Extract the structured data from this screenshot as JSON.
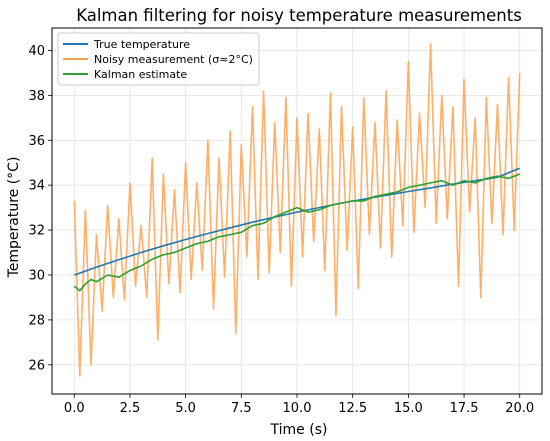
{
  "chart_data": {
    "type": "line",
    "title": "Kalman filtering for noisy temperature measurements",
    "xlabel": "Time (s)",
    "ylabel": "Temperature (°C)",
    "xlim": [
      -1.0,
      21.0
    ],
    "ylim": [
      24.7,
      41.0
    ],
    "xticks": [
      0.0,
      2.5,
      5.0,
      7.5,
      10.0,
      12.5,
      15.0,
      17.5,
      20.0
    ],
    "xtick_labels": [
      "0.0",
      "2.5",
      "5.0",
      "7.5",
      "10.0",
      "12.5",
      "15.0",
      "17.5",
      "20.0"
    ],
    "yticks": [
      26,
      28,
      30,
      32,
      34,
      36,
      38,
      40
    ],
    "ytick_labels": [
      "26",
      "28",
      "30",
      "32",
      "34",
      "36",
      "38",
      "40"
    ],
    "grid": true,
    "legend_position": "top-left",
    "series": [
      {
        "name": "True temperature",
        "color": "#1f77b4",
        "x": [
          0,
          1,
          2,
          3,
          4,
          5,
          6,
          7,
          8,
          9,
          10,
          11,
          12,
          13,
          14,
          15,
          16,
          17,
          18,
          19,
          20
        ],
        "y": [
          30.0,
          30.35,
          30.68,
          31.0,
          31.3,
          31.58,
          31.85,
          32.1,
          32.35,
          32.58,
          32.8,
          33.0,
          33.2,
          33.38,
          33.55,
          33.72,
          33.88,
          34.05,
          34.2,
          34.35,
          34.75
        ]
      },
      {
        "name": "Noisy measurement (σ≈2°C)",
        "color": "#ffa14d",
        "x": [
          0,
          0.25,
          0.5,
          0.75,
          1.0,
          1.25,
          1.5,
          1.75,
          2.0,
          2.25,
          2.5,
          2.75,
          3.0,
          3.25,
          3.5,
          3.75,
          4.0,
          4.25,
          4.5,
          4.75,
          5.0,
          5.25,
          5.5,
          5.75,
          6.0,
          6.25,
          6.5,
          6.75,
          7.0,
          7.25,
          7.5,
          7.75,
          8.0,
          8.25,
          8.5,
          8.75,
          9.0,
          9.25,
          9.5,
          9.75,
          10.0,
          10.25,
          10.5,
          10.75,
          11.0,
          11.25,
          11.5,
          11.75,
          12.0,
          12.25,
          12.5,
          12.75,
          13.0,
          13.25,
          13.5,
          13.75,
          14.0,
          14.25,
          14.5,
          14.75,
          15.0,
          15.25,
          15.5,
          15.75,
          16.0,
          16.25,
          16.5,
          16.75,
          17.0,
          17.25,
          17.5,
          17.75,
          18.0,
          18.25,
          18.5,
          18.75,
          19.0,
          19.25,
          19.5,
          19.75,
          20.0
        ],
        "y": [
          33.3,
          25.5,
          32.9,
          26.0,
          31.8,
          28.4,
          33.1,
          29.0,
          32.5,
          28.9,
          34.1,
          29.5,
          32.2,
          29.0,
          35.2,
          27.1,
          34.5,
          29.6,
          33.8,
          29.2,
          35.0,
          29.8,
          34.1,
          30.2,
          36.0,
          28.5,
          35.2,
          29.9,
          36.4,
          27.4,
          35.8,
          30.8,
          37.5,
          29.8,
          38.2,
          30.1,
          36.8,
          31.0,
          37.9,
          29.5,
          37.0,
          30.8,
          37.2,
          31.5,
          36.5,
          30.2,
          38.1,
          28.2,
          37.5,
          31.1,
          36.6,
          29.4,
          37.9,
          31.8,
          36.8,
          31.2,
          38.2,
          30.8,
          36.9,
          32.2,
          39.5,
          31.9,
          37.2,
          33.0,
          40.3,
          32.3,
          38.0,
          32.5,
          37.5,
          29.5,
          38.7,
          32.8,
          37.0,
          29.0,
          37.9,
          32.3,
          37.6,
          31.8,
          38.8,
          32.0,
          39.0
        ]
      },
      {
        "name": "Kalman estimate",
        "color": "#2ca02c",
        "x": [
          0,
          0.25,
          0.5,
          0.75,
          1.0,
          1.5,
          2.0,
          2.5,
          3.0,
          3.5,
          4.0,
          4.5,
          5.0,
          5.5,
          6.0,
          6.5,
          7.0,
          7.5,
          8.0,
          8.5,
          9.0,
          9.5,
          10.0,
          10.5,
          11.0,
          11.5,
          12.0,
          12.5,
          13.0,
          13.5,
          14.0,
          14.5,
          15.0,
          15.5,
          16.0,
          16.5,
          17.0,
          17.5,
          18.0,
          18.5,
          19.0,
          19.5,
          20.0
        ],
        "y": [
          29.5,
          29.3,
          29.6,
          29.8,
          29.7,
          30.0,
          29.9,
          30.2,
          30.4,
          30.7,
          30.9,
          31.0,
          31.2,
          31.4,
          31.5,
          31.7,
          31.8,
          31.9,
          32.2,
          32.3,
          32.6,
          32.8,
          33.0,
          32.8,
          32.9,
          33.1,
          33.2,
          33.3,
          33.3,
          33.5,
          33.6,
          33.7,
          33.9,
          34.0,
          34.1,
          34.2,
          34.0,
          34.2,
          34.1,
          34.3,
          34.4,
          34.3,
          34.5
        ]
      }
    ]
  }
}
